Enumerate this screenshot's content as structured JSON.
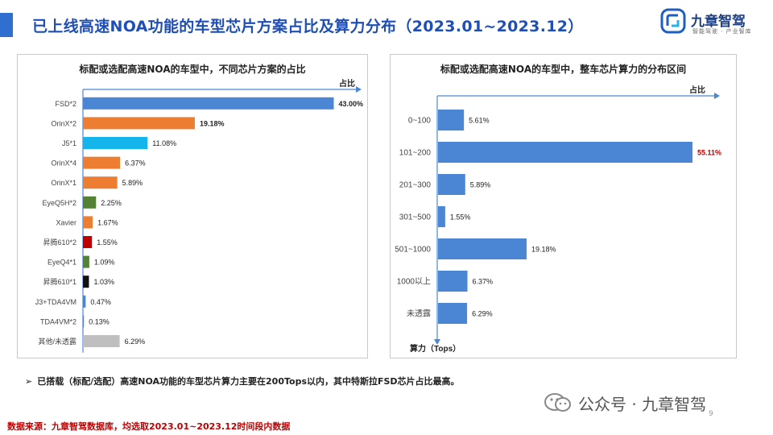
{
  "page": {
    "title": "已上线高速NOA功能的车型芯片方案占比及算力分布（2023.01~2023.12）",
    "logo_name": "九章智驾",
    "logo_tagline": "智能驾驶 · 产业智库",
    "note": "已搭载（标配/选配）高速NOA功能的车型芯片算力主要在200Tops以内，其中特斯拉FSD芯片占比最高。",
    "wechat_text": "公众号 · 九章智驾",
    "source": "数据来源：九章智驾数据库，均选取2023.01~2023.12时间段内数据",
    "page_number": "9"
  },
  "colors": {
    "title_blue": "#1f4fb5",
    "bar_blue": "#4a86d4",
    "bar_orange": "#ed7d31",
    "bar_cyan": "#13b5ea",
    "bar_green": "#548235",
    "bar_red": "#c00000",
    "bar_black": "#111111",
    "bar_gray": "#bfbfbf",
    "source_red": "#c00000",
    "highlight_red": "#c00000"
  },
  "chart_data": [
    {
      "type": "bar",
      "orientation": "horizontal",
      "title": "标配或选配高速NOA的车型中，不同芯片方案的占比",
      "xlabel": "占比",
      "ylabel": "",
      "unit": "%",
      "xlim": [
        0,
        45
      ],
      "grid": false,
      "categories": [
        "FSD*2",
        "OrinX*2",
        "J5*1",
        "OrinX*4",
        "OrinX*1",
        "EyeQ5H*2",
        "Xavier",
        "昇腾610*2",
        "EyeQ4*1",
        "昇腾610*1",
        "J3+TDA4VM",
        "TDA4VM*2",
        "其他/未透露"
      ],
      "values": [
        43.0,
        19.18,
        11.08,
        6.37,
        5.89,
        2.25,
        1.67,
        1.55,
        1.09,
        1.03,
        0.47,
        0.13,
        6.29
      ],
      "labels": [
        "43.00%",
        "19.18%",
        "11.08%",
        "6.37%",
        "5.89%",
        "2.25%",
        "1.67%",
        "1.55%",
        "1.09%",
        "1.03%",
        "0.47%",
        "0.13%",
        "6.29%"
      ],
      "bold_labels": [
        true,
        true,
        false,
        false,
        false,
        false,
        false,
        false,
        false,
        false,
        false,
        false,
        false
      ],
      "bar_colors": [
        "#4a86d4",
        "#ed7d31",
        "#13b5ea",
        "#ed7d31",
        "#ed7d31",
        "#548235",
        "#ed7d31",
        "#c00000",
        "#548235",
        "#111111",
        "#4a86d4",
        "#4a86d4",
        "#bfbfbf"
      ]
    },
    {
      "type": "bar",
      "orientation": "horizontal",
      "title": "标配或选配高速NOA的车型中，整车芯片算力的分布区间",
      "xlabel": "占比",
      "ylabel": "算力（Tops）",
      "unit": "%",
      "xlim": [
        0,
        55.11
      ],
      "grid": false,
      "categories": [
        "0~100",
        "101~200",
        "201~300",
        "301~500",
        "501~1000",
        "1000以上",
        "未透露"
      ],
      "values": [
        5.61,
        55.11,
        5.89,
        1.55,
        19.18,
        6.37,
        6.29
      ],
      "labels": [
        "5.61%",
        "55.11%",
        "5.89%",
        "1.55%",
        "19.18%",
        "6.37%",
        "6.29%"
      ],
      "highlight_index": 1,
      "bar_color": "#4a86d4",
      "highlight_color": "#c00000"
    }
  ]
}
